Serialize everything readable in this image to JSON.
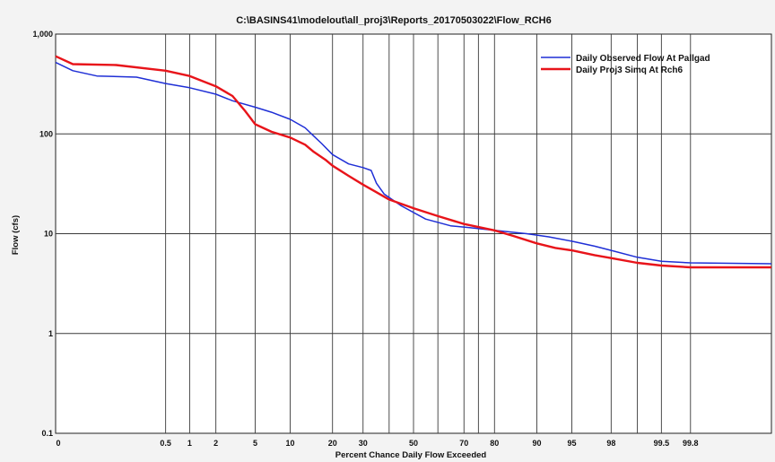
{
  "chart_data": {
    "type": "line",
    "title": "C:\\BASINS41\\modelout\\all_proj3\\Reports_20170503022\\Flow_RCH6",
    "xlabel": "Percent Chance Daily Flow Exceeded",
    "ylabel": "Flow (cfs)",
    "x_scale": "normal-probability",
    "y_scale": "log",
    "xlim": [
      0.01,
      99.99
    ],
    "ylim": [
      0.1,
      1000
    ],
    "grid": true,
    "legend_position": "top-right",
    "x_ticks": [
      {
        "value": 0.01,
        "label": "0"
      },
      {
        "value": 0.5,
        "label": "0.5"
      },
      {
        "value": 1,
        "label": "1"
      },
      {
        "value": 2,
        "label": "2"
      },
      {
        "value": 5,
        "label": "5"
      },
      {
        "value": 10,
        "label": "10"
      },
      {
        "value": 20,
        "label": "20"
      },
      {
        "value": 30,
        "label": "30"
      },
      {
        "value": 50,
        "label": "50"
      },
      {
        "value": 70,
        "label": "70"
      },
      {
        "value": 80,
        "label": "80"
      },
      {
        "value": 90,
        "label": "90"
      },
      {
        "value": 95,
        "label": "95"
      },
      {
        "value": 98,
        "label": "98"
      },
      {
        "value": 99.5,
        "label": "99.5"
      },
      {
        "value": 99.8,
        "label": "99.8"
      }
    ],
    "extra_gridlines": [
      40,
      60,
      75,
      99
    ],
    "y_ticks": [
      {
        "value": 0.1,
        "label": "0.1"
      },
      {
        "value": 1,
        "label": "1"
      },
      {
        "value": 10,
        "label": "10"
      },
      {
        "value": 100,
        "label": "100"
      },
      {
        "value": 1000,
        "label": "1,000"
      }
    ],
    "series": [
      {
        "name": "Daily Observed Flow At Pallgad",
        "color": "#1f2fd6",
        "points": [
          [
            0.01,
            520
          ],
          [
            0.02,
            430
          ],
          [
            0.05,
            380
          ],
          [
            0.2,
            370
          ],
          [
            0.5,
            320
          ],
          [
            1,
            290
          ],
          [
            2,
            250
          ],
          [
            3,
            215
          ],
          [
            5,
            185
          ],
          [
            7,
            165
          ],
          [
            10,
            140
          ],
          [
            13,
            115
          ],
          [
            15,
            95
          ],
          [
            17,
            80
          ],
          [
            20,
            62
          ],
          [
            25,
            50
          ],
          [
            30,
            46
          ],
          [
            33,
            43
          ],
          [
            35,
            32
          ],
          [
            38,
            25
          ],
          [
            45,
            19
          ],
          [
            55,
            14
          ],
          [
            65,
            12
          ],
          [
            72,
            11.5
          ],
          [
            80,
            10.8
          ],
          [
            88,
            10
          ],
          [
            92,
            9.3
          ],
          [
            95,
            8.4
          ],
          [
            97,
            7.5
          ],
          [
            98,
            6.8
          ],
          [
            99,
            5.8
          ],
          [
            99.5,
            5.3
          ],
          [
            99.8,
            5.1
          ],
          [
            99.99,
            5.0
          ]
        ]
      },
      {
        "name": "Daily Proj3 Simq At Rch6",
        "color": "#e8141a",
        "points": [
          [
            0.01,
            600
          ],
          [
            0.02,
            500
          ],
          [
            0.1,
            490
          ],
          [
            0.5,
            430
          ],
          [
            1,
            380
          ],
          [
            2,
            300
          ],
          [
            3,
            240
          ],
          [
            4,
            170
          ],
          [
            5,
            125
          ],
          [
            7,
            105
          ],
          [
            10,
            92
          ],
          [
            13,
            78
          ],
          [
            15,
            66
          ],
          [
            18,
            55
          ],
          [
            20,
            48
          ],
          [
            25,
            38
          ],
          [
            30,
            31
          ],
          [
            35,
            26
          ],
          [
            40,
            22
          ],
          [
            50,
            18
          ],
          [
            60,
            15
          ],
          [
            70,
            12.5
          ],
          [
            80,
            10.8
          ],
          [
            85,
            9.5
          ],
          [
            90,
            8.0
          ],
          [
            93,
            7.2
          ],
          [
            95,
            6.8
          ],
          [
            97,
            6.1
          ],
          [
            98,
            5.7
          ],
          [
            99,
            5.1
          ],
          [
            99.5,
            4.8
          ],
          [
            99.8,
            4.6
          ],
          [
            99.99,
            4.6
          ]
        ]
      }
    ]
  }
}
